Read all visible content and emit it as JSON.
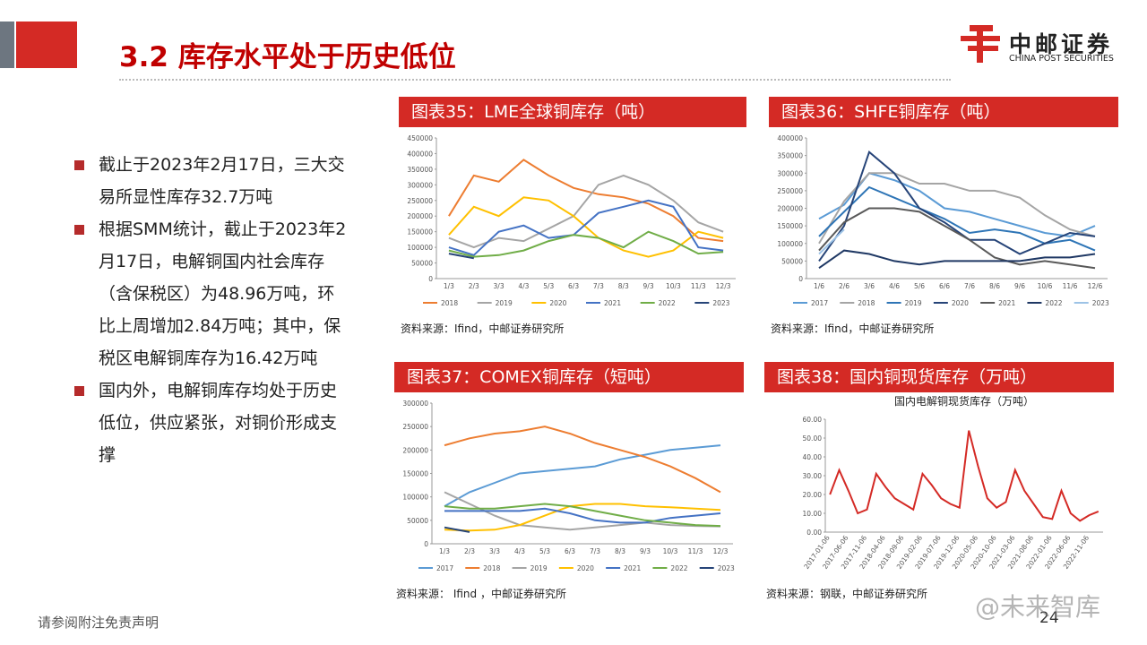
{
  "header": {
    "title": "3.2 库存水平处于历史低位",
    "logo_cn": "中邮证券",
    "logo_en": "CHINA POST SECURITIES"
  },
  "bullets": [
    "截止于2023年2月17日，三大交易所显性库存32.7万吨",
    "根据SMM统计，截止于2023年2月17日，电解铜国内社会库存（含保税区）为48.96万吨，环比上周增加2.84万吨；其中，保税区电解铜库存为16.42万吨",
    "国内外，电解铜库存均处于历史低位，供应紧张，对铜价形成支撑"
  ],
  "footer": {
    "disclaimer": "请参阅附注免责声明",
    "page": "24",
    "watermark": "@未来智库"
  },
  "chart_data": [
    {
      "type": "line",
      "title": "图表35：LME全球铜库存（吨）",
      "source": "资料来源：Ifind，中邮证券研究所",
      "legend": "bottom",
      "categories": [
        "1/3",
        "2/3",
        "3/3",
        "4/3",
        "5/3",
        "6/3",
        "7/3",
        "8/3",
        "9/3",
        "10/3",
        "11/3",
        "12/3"
      ],
      "ylim": [
        0,
        450000
      ],
      "yticks": [
        0,
        50000,
        100000,
        150000,
        200000,
        250000,
        300000,
        350000,
        400000,
        450000
      ],
      "series": [
        {
          "name": "2018",
          "color": "#ed7d31",
          "values": [
            200000,
            330000,
            310000,
            380000,
            330000,
            290000,
            270000,
            260000,
            240000,
            200000,
            130000,
            120000
          ]
        },
        {
          "name": "2019",
          "color": "#a5a5a5",
          "values": [
            130000,
            100000,
            130000,
            120000,
            160000,
            200000,
            300000,
            330000,
            300000,
            250000,
            180000,
            150000
          ]
        },
        {
          "name": "2020",
          "color": "#ffc000",
          "values": [
            140000,
            230000,
            200000,
            260000,
            250000,
            200000,
            130000,
            90000,
            70000,
            90000,
            150000,
            130000
          ]
        },
        {
          "name": "2021",
          "color": "#4472c4",
          "values": [
            100000,
            75000,
            150000,
            170000,
            130000,
            140000,
            210000,
            230000,
            250000,
            230000,
            100000,
            90000
          ]
        },
        {
          "name": "2022",
          "color": "#70ad47",
          "values": [
            90000,
            70000,
            75000,
            90000,
            120000,
            140000,
            130000,
            100000,
            150000,
            120000,
            80000,
            85000
          ]
        },
        {
          "name": "2023",
          "color": "#264478",
          "values": [
            80000,
            65000,
            null,
            null,
            null,
            null,
            null,
            null,
            null,
            null,
            null,
            null
          ]
        }
      ]
    },
    {
      "type": "line",
      "title": "图表36：SHFE铜库存（吨）",
      "source": "资料来源：Ifind，中邮证券研究所",
      "legend": "bottom",
      "categories": [
        "1/6",
        "2/6",
        "3/6",
        "4/6",
        "5/6",
        "6/6",
        "7/6",
        "8/6",
        "9/6",
        "10/6",
        "11/6",
        "12/6"
      ],
      "ylim": [
        0,
        400000
      ],
      "yticks": [
        0,
        50000,
        100000,
        150000,
        200000,
        250000,
        300000,
        350000,
        400000
      ],
      "series": [
        {
          "name": "2017",
          "color": "#5b9bd5",
          "values": [
            170000,
            210000,
            300000,
            280000,
            250000,
            200000,
            190000,
            170000,
            150000,
            130000,
            120000,
            150000
          ]
        },
        {
          "name": "2018",
          "color": "#a5a5a5",
          "values": [
            100000,
            220000,
            300000,
            300000,
            270000,
            270000,
            250000,
            250000,
            230000,
            180000,
            140000,
            120000
          ]
        },
        {
          "name": "2019",
          "color": "#2e75b6",
          "values": [
            120000,
            190000,
            260000,
            230000,
            200000,
            170000,
            130000,
            140000,
            130000,
            100000,
            110000,
            80000
          ]
        },
        {
          "name": "2020",
          "color": "#264478",
          "values": [
            50000,
            150000,
            360000,
            300000,
            200000,
            160000,
            110000,
            110000,
            70000,
            100000,
            130000,
            120000
          ]
        },
        {
          "name": "2021",
          "color": "#595959",
          "values": [
            80000,
            160000,
            200000,
            200000,
            190000,
            150000,
            110000,
            60000,
            40000,
            50000,
            40000,
            30000
          ]
        },
        {
          "name": "2022",
          "color": "#1f3864",
          "values": [
            30000,
            80000,
            70000,
            50000,
            40000,
            50000,
            50000,
            50000,
            50000,
            60000,
            60000,
            70000
          ]
        },
        {
          "name": "2023",
          "color": "#9dc3e6",
          "values": [
            70000,
            140000,
            null,
            null,
            null,
            null,
            null,
            null,
            null,
            null,
            null,
            null
          ]
        }
      ]
    },
    {
      "type": "line",
      "title": "图表37：COMEX铜库存（短吨）",
      "source": "资料来源： Ifind ，中邮证券研究所",
      "legend": "bottom",
      "categories": [
        "1/3",
        "2/3",
        "3/3",
        "4/3",
        "5/3",
        "6/3",
        "7/3",
        "8/3",
        "9/3",
        "10/3",
        "11/3",
        "12/3"
      ],
      "ylim": [
        0,
        300000
      ],
      "yticks": [
        0,
        50000,
        100000,
        150000,
        200000,
        250000,
        300000
      ],
      "series": [
        {
          "name": "2017",
          "color": "#5b9bd5",
          "values": [
            80000,
            110000,
            130000,
            150000,
            155000,
            160000,
            165000,
            180000,
            190000,
            200000,
            205000,
            210000
          ]
        },
        {
          "name": "2018",
          "color": "#ed7d31",
          "values": [
            210000,
            225000,
            235000,
            240000,
            250000,
            235000,
            215000,
            200000,
            185000,
            165000,
            140000,
            110000
          ]
        },
        {
          "name": "2019",
          "color": "#a5a5a5",
          "values": [
            110000,
            85000,
            60000,
            40000,
            35000,
            30000,
            35000,
            40000,
            45000,
            40000,
            38000,
            37000
          ]
        },
        {
          "name": "2020",
          "color": "#ffc000",
          "values": [
            30000,
            28000,
            30000,
            40000,
            60000,
            80000,
            85000,
            85000,
            80000,
            78000,
            75000,
            72000
          ]
        },
        {
          "name": "2021",
          "color": "#4472c4",
          "values": [
            70000,
            70000,
            70000,
            70000,
            75000,
            65000,
            50000,
            45000,
            45000,
            55000,
            60000,
            65000
          ]
        },
        {
          "name": "2022",
          "color": "#70ad47",
          "values": [
            80000,
            75000,
            75000,
            80000,
            85000,
            80000,
            70000,
            60000,
            50000,
            45000,
            40000,
            38000
          ]
        },
        {
          "name": "2023",
          "color": "#264478",
          "values": [
            35000,
            25000,
            null,
            null,
            null,
            null,
            null,
            null,
            null,
            null,
            null,
            null
          ]
        }
      ]
    },
    {
      "type": "line",
      "title": "图表38：国内铜现货库存（万吨）",
      "subtitle": "国内电解铜现货库存（万吨）",
      "source": "资料来源：钢联，中邮证券研究所",
      "categories": [
        "2017-01-06",
        null,
        "2017-06-06",
        null,
        "2017-11-06",
        null,
        "2018-04-06",
        null,
        "2018-09-06",
        null,
        "2019-02-06",
        null,
        "2019-07-06",
        null,
        "2019-12-06",
        null,
        "2020-05-06",
        null,
        "2020-10-06",
        null,
        "2021-03-06",
        null,
        "2021-08-06",
        null,
        "2022-01-06",
        null,
        "2022-06-06",
        null,
        "2022-11-06",
        null
      ],
      "ylim": [
        0,
        60
      ],
      "yticks": [
        {
          "value": 0,
          "label": "0.00"
        },
        {
          "value": 10,
          "label": "10.00"
        },
        {
          "value": 20,
          "label": "20.00"
        },
        {
          "value": 30,
          "label": "30.00"
        },
        {
          "value": 40,
          "label": "40.00"
        },
        {
          "value": 50,
          "label": "50.00"
        },
        {
          "value": 60,
          "label": "60.00"
        }
      ],
      "series": [
        {
          "color": "#d42a25",
          "values": [
            20,
            33,
            22,
            10,
            12,
            31,
            24,
            18,
            15,
            12,
            31,
            25,
            18,
            15,
            13,
            54,
            35,
            18,
            13,
            16,
            33,
            22,
            15,
            8,
            7,
            22,
            10,
            6,
            9,
            11
          ]
        }
      ]
    }
  ]
}
